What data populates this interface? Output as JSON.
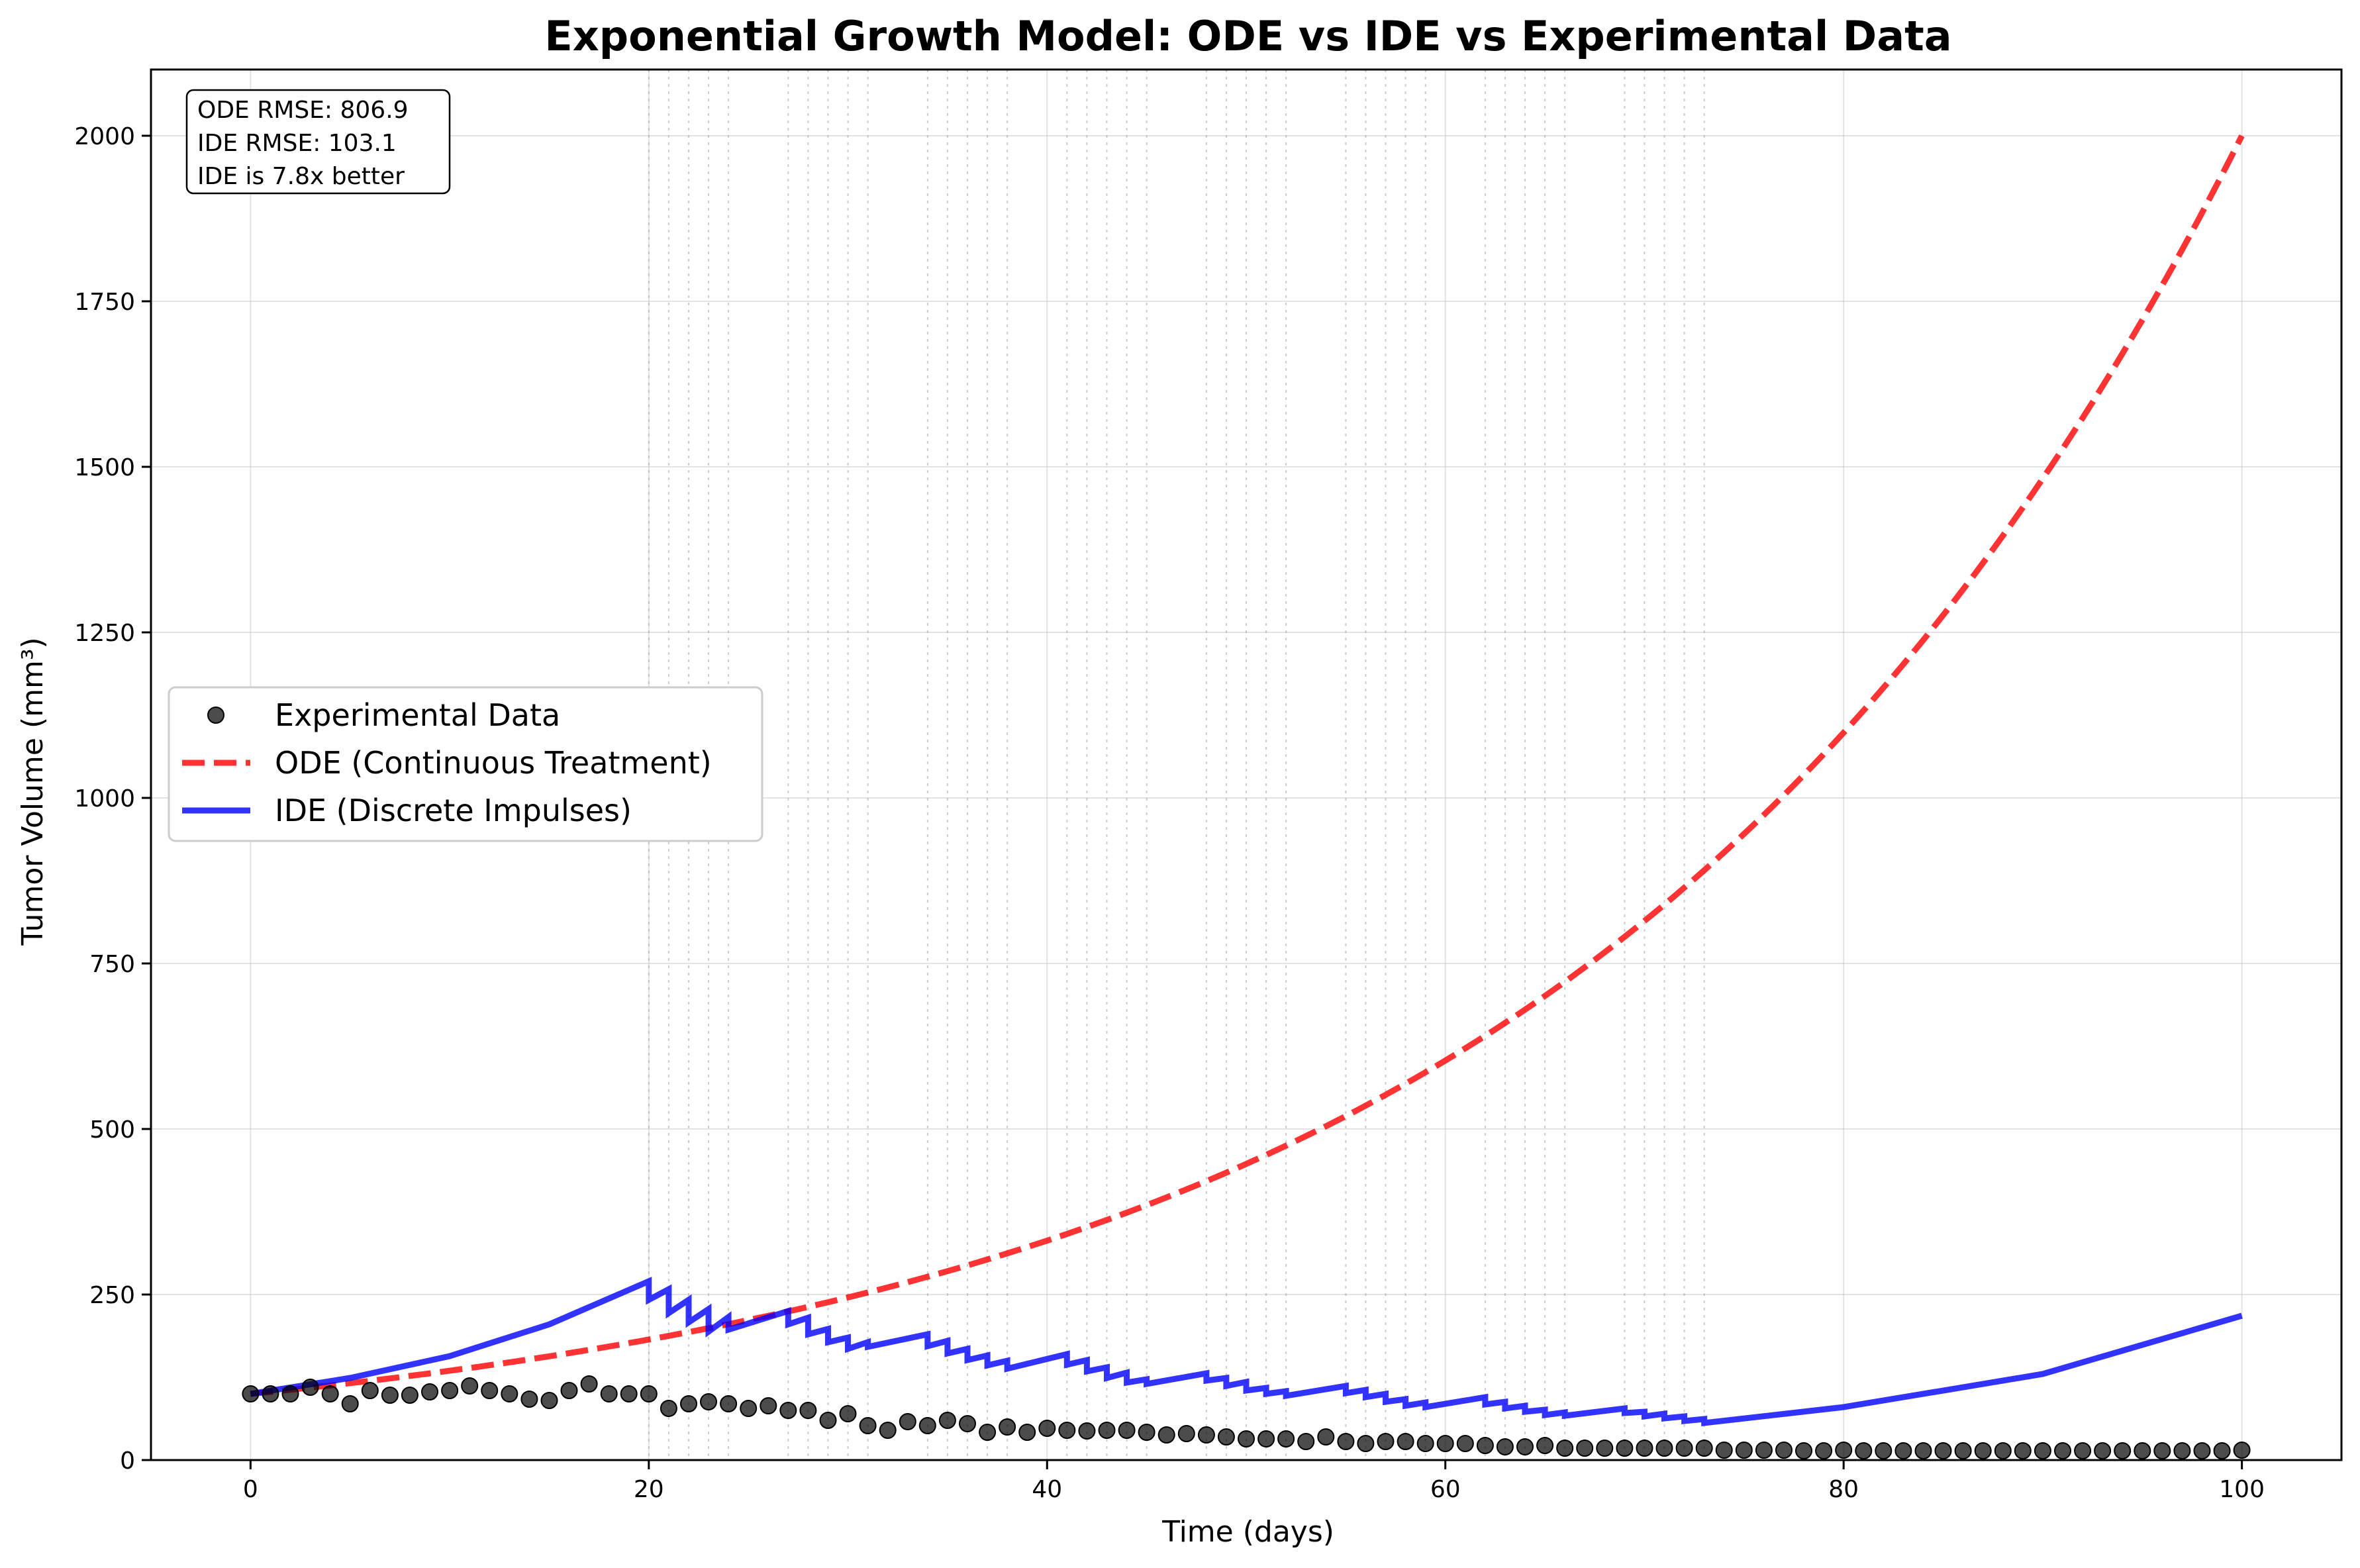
{
  "chart_data": {
    "type": "line",
    "title": "Exponential Growth Model: ODE vs IDE vs Experimental Data",
    "xlabel": "Time (days)",
    "ylabel": "Tumor Volume (mm³)",
    "xlim": [
      -5,
      105
    ],
    "ylim": [
      0,
      2100
    ],
    "xticks": [
      0,
      20,
      40,
      60,
      80,
      100
    ],
    "yticks": [
      0,
      250,
      500,
      750,
      1000,
      1250,
      1500,
      1750,
      2000
    ],
    "grid": true,
    "legend_position": "center-left",
    "stats_box": [
      "ODE RMSE: 806.9",
      "IDE RMSE: 103.1",
      "IDE is 7.8x better"
    ],
    "dose_days": [
      20,
      21,
      22,
      23,
      24,
      27,
      28,
      29,
      30,
      31,
      34,
      35,
      36,
      37,
      38,
      41,
      42,
      43,
      44,
      45,
      48,
      49,
      50,
      51,
      52,
      55,
      56,
      57,
      58,
      59,
      62,
      63,
      64,
      65,
      66,
      69,
      70,
      71,
      72,
      73
    ],
    "series": [
      {
        "name": "Experimental Data",
        "kind": "scatter",
        "color": "#000000",
        "x": [
          0,
          1,
          2,
          3,
          4,
          5,
          6,
          7,
          8,
          9,
          10,
          11,
          12,
          13,
          14,
          15,
          16,
          17,
          18,
          19,
          20,
          21,
          22,
          23,
          24,
          25,
          26,
          27,
          28,
          29,
          30,
          31,
          32,
          33,
          34,
          35,
          36,
          37,
          38,
          39,
          40,
          41,
          42,
          43,
          44,
          45,
          46,
          47,
          48,
          49,
          50,
          51,
          52,
          53,
          54,
          55,
          56,
          57,
          58,
          59,
          60,
          61,
          62,
          63,
          64,
          65,
          66,
          67,
          68,
          69,
          70,
          71,
          72,
          73,
          74,
          75,
          76,
          77,
          78,
          79,
          80,
          81,
          82,
          83,
          84,
          85,
          86,
          87,
          88,
          89,
          90,
          91,
          92,
          93,
          94,
          95,
          96,
          97,
          98,
          99,
          100
        ],
        "y": [
          100,
          100,
          100,
          110,
          100,
          85,
          105,
          98,
          98,
          103,
          105,
          112,
          105,
          100,
          92,
          90,
          105,
          115,
          100,
          100,
          100,
          78,
          85,
          88,
          85,
          78,
          82,
          75,
          75,
          60,
          70,
          52,
          45,
          58,
          52,
          60,
          55,
          42,
          50,
          42,
          48,
          45,
          44,
          45,
          45,
          42,
          38,
          40,
          38,
          35,
          32,
          32,
          32,
          28,
          35,
          28,
          25,
          28,
          28,
          25,
          25,
          25,
          22,
          20,
          20,
          22,
          18,
          18,
          18,
          18,
          18,
          18,
          18,
          18,
          15,
          15,
          15,
          15,
          14,
          14,
          15,
          14,
          14,
          14,
          14,
          14,
          14,
          14,
          14,
          14,
          14,
          14,
          14,
          14,
          14,
          14,
          14,
          14,
          14,
          14,
          15
        ]
      },
      {
        "name": "ODE (Continuous Treatment)",
        "kind": "line",
        "color": "#ff0000",
        "dash": "dashed",
        "x": [
          0,
          10,
          20,
          30,
          40,
          50,
          60,
          70,
          80,
          90,
          100
        ],
        "y": [
          100,
          135,
          181,
          246,
          332,
          448,
          603,
          813,
          1095,
          1483,
          2000
        ]
      },
      {
        "name": "IDE (Discrete Impulses)",
        "kind": "line",
        "color": "#0000ff",
        "dash": "solid",
        "x": [
          0,
          5,
          10,
          15,
          20,
          20,
          21,
          21,
          22,
          22,
          23,
          23,
          24,
          24,
          27,
          27,
          28,
          28,
          29,
          29,
          30,
          30,
          31,
          31,
          34,
          34,
          35,
          35,
          36,
          36,
          37,
          37,
          38,
          38,
          41,
          41,
          42,
          42,
          43,
          43,
          44,
          44,
          45,
          45,
          48,
          48,
          49,
          49,
          50,
          50,
          51,
          51,
          52,
          52,
          55,
          55,
          56,
          56,
          57,
          57,
          58,
          58,
          59,
          59,
          62,
          62,
          63,
          63,
          64,
          64,
          65,
          65,
          66,
          66,
          69,
          69,
          70,
          70,
          71,
          71,
          72,
          72,
          73,
          73,
          80,
          90,
          100
        ],
        "y": [
          100,
          124,
          157,
          205,
          270,
          242,
          258,
          222,
          242,
          208,
          228,
          194,
          216,
          197,
          225,
          205,
          215,
          190,
          198,
          178,
          185,
          168,
          178,
          171,
          190,
          172,
          180,
          161,
          168,
          151,
          158,
          143,
          150,
          138,
          160,
          144,
          151,
          134,
          140,
          124,
          132,
          117,
          122,
          115,
          131,
          120,
          124,
          112,
          118,
          105,
          109,
          100,
          104,
          97,
          112,
          101,
          106,
          95,
          100,
          88,
          92,
          82,
          87,
          80,
          95,
          84,
          88,
          78,
          82,
          73,
          76,
          68,
          72,
          67,
          78,
          71,
          73,
          66,
          70,
          63,
          66,
          59,
          62,
          56,
          80,
          130,
          218
        ]
      }
    ]
  }
}
